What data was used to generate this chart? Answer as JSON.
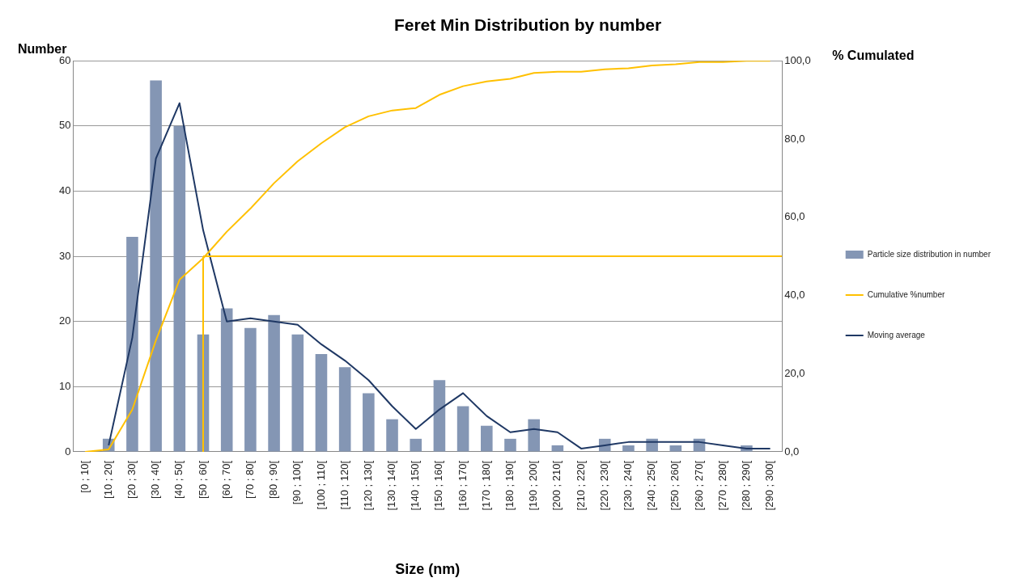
{
  "chart_data": {
    "type": "bar",
    "title": "Feret Min Distribution by number",
    "xlabel": "Size (nm)",
    "ylabel": "Number",
    "y2label": "% Cumulated",
    "categories": [
      "[0 ; 10[",
      "[10 ; 20[",
      "[20 ; 30[",
      "[30 ; 40[",
      "[40 ; 50[",
      "[50 ; 60[",
      "[60 ; 70[",
      "[70 ; 80[",
      "[80 ; 90[",
      "[90 ; 100[",
      "[100 ; 110[",
      "[110 ; 120[",
      "[120 ; 130[",
      "[130 ; 140[",
      "[140 ; 150[",
      "[150 ; 160[",
      "[160 ; 170[",
      "[170 ; 180[",
      "[180 ; 190[",
      "[190 ; 200[",
      "[200 ; 210[",
      "[210 ; 220[",
      "[220 ; 230[",
      "[230 ; 240[",
      "[240 ; 250[",
      "[250 ; 260[",
      "[260 ; 270[",
      "[270 ; 280[",
      "[280 ; 290[",
      "[290 ; 300["
    ],
    "series": [
      {
        "name": "Particle size distribution in number",
        "color": "#8496b4",
        "values": [
          0,
          2,
          33,
          57,
          50,
          18,
          22,
          19,
          21,
          18,
          15,
          13,
          9,
          5,
          2,
          11,
          7,
          4,
          2,
          5,
          1,
          0,
          2,
          1,
          2,
          1,
          2,
          0,
          1,
          0
        ]
      },
      {
        "name": "Cumulative %number",
        "type": "line",
        "axis": "y2",
        "color": "#ffc000",
        "values": [
          0,
          0.6,
          10.8,
          28.5,
          44.0,
          49.5,
          56.3,
          62.2,
          68.7,
          74.3,
          78.9,
          83.0,
          85.8,
          87.3,
          87.9,
          91.3,
          93.5,
          94.7,
          95.4,
          96.9,
          97.2,
          97.2,
          97.8,
          98.1,
          98.8,
          99.1,
          99.7,
          99.7,
          100,
          100
        ]
      },
      {
        "name": "Moving average",
        "type": "line",
        "color": "#1f3864",
        "values": [
          null,
          1,
          17.5,
          45,
          53.5,
          34,
          20,
          20.5,
          20,
          19.5,
          16.5,
          14,
          11,
          7,
          3.5,
          6.5,
          9,
          5.5,
          3,
          3.5,
          3,
          0.5,
          1,
          1.5,
          1.5,
          1.5,
          1.5,
          1,
          0.5,
          0.5
        ]
      }
    ],
    "ylim": [
      0,
      60
    ],
    "yticks": [
      0,
      10,
      20,
      30,
      40,
      50,
      60
    ],
    "y2lim": [
      0,
      100
    ],
    "y2ticks": [
      {
        "value": 0,
        "label": "0,0"
      },
      {
        "value": 20,
        "label": "20,0"
      },
      {
        "value": 40,
        "label": "40,0"
      },
      {
        "value": 60,
        "label": "60,0"
      },
      {
        "value": 80,
        "label": "80,0"
      },
      {
        "value": 100,
        "label": "100,0"
      }
    ],
    "ref_lines": [
      {
        "axis": "y2",
        "value": 50,
        "color": "#ffc000"
      },
      {
        "axis": "x",
        "value": "[50 ; 60[",
        "color": "#ffc000"
      }
    ],
    "grid": "y",
    "legend": "right",
    "marker": "none",
    "line_style": "solid"
  }
}
